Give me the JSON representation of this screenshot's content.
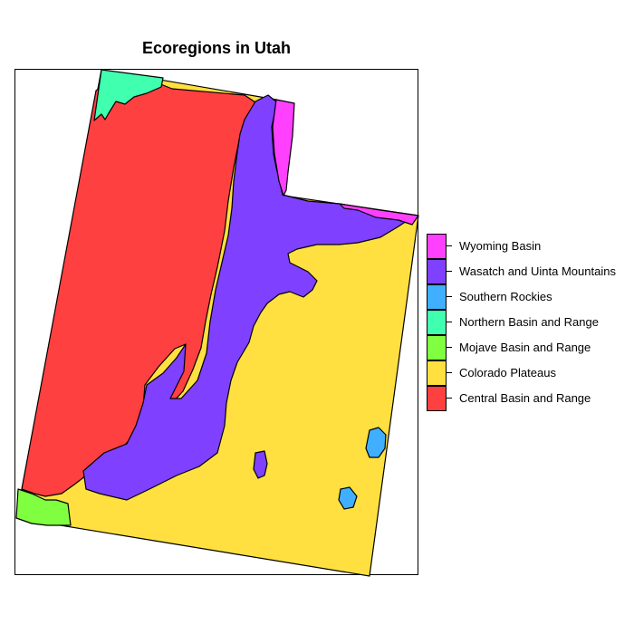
{
  "title": "Ecoregions in Utah",
  "legend": {
    "items": [
      {
        "label": "Wyoming Basin",
        "color": "#FF40FF"
      },
      {
        "label": "Wasatch and Uinta Mountains",
        "color": "#7F40FF"
      },
      {
        "label": "Southern Rockies",
        "color": "#40AFFF"
      },
      {
        "label": "Northern Basin and Range",
        "color": "#40FFAF"
      },
      {
        "label": "Mojave Basin and Range",
        "color": "#7FFF40"
      },
      {
        "label": "Colorado Plateaus",
        "color": "#FFE040"
      },
      {
        "label": "Central Basin and Range",
        "color": "#FF4040"
      }
    ]
  }
}
